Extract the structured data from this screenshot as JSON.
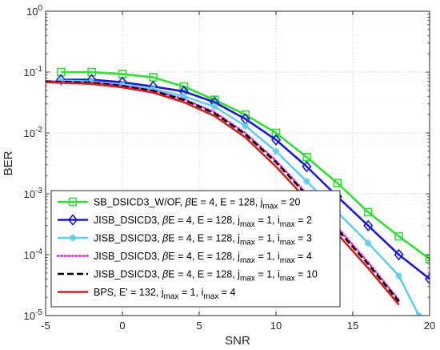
{
  "chart_data": {
    "type": "line",
    "xlabel": "SNR",
    "ylabel": "BER",
    "xlim": [
      -5,
      20
    ],
    "ylim": [
      1e-05,
      1
    ],
    "yscale": "log",
    "grid": true,
    "legend_position": "bottom-left",
    "x_ticks": [
      "-5",
      "0",
      "5",
      "10",
      "15",
      "20"
    ],
    "y_ticks": [
      {
        "base": "10",
        "exp": "0"
      },
      {
        "base": "10",
        "exp": "-1"
      },
      {
        "base": "10",
        "exp": "-2"
      },
      {
        "base": "10",
        "exp": "-3"
      },
      {
        "base": "10",
        "exp": "-4"
      },
      {
        "base": "10",
        "exp": "-5"
      }
    ],
    "series": [
      {
        "name": "SB_DSICD3_W/OF, βE = 4, E = 128, j_max = 20",
        "color": "#33dd33",
        "marker": "square",
        "dash": "solid",
        "x": [
          -4,
          -2,
          0,
          2,
          4,
          6,
          8,
          10,
          12,
          14,
          16,
          18,
          20
        ],
        "y": [
          0.1,
          0.1,
          0.093,
          0.082,
          0.058,
          0.035,
          0.02,
          0.01,
          0.004,
          0.0015,
          0.0005,
          0.0002,
          8.5e-05
        ]
      },
      {
        "name": "JISB_DSICD3, βE = 4, E = 128, j_max = 1, i_max = 2",
        "color": "#1a1acc",
        "marker": "diamond",
        "dash": "solid",
        "x": [
          -4,
          -2,
          0,
          2,
          4,
          6,
          8,
          10,
          12,
          14,
          16,
          18,
          20
        ],
        "y": [
          0.075,
          0.075,
          0.068,
          0.058,
          0.048,
          0.032,
          0.017,
          0.0077,
          0.0028,
          0.0009,
          0.0003,
          0.0001,
          4e-05
        ]
      },
      {
        "name": "JISB_DSICD3, βE = 4, E = 128, j_max = 1, i_max = 3",
        "color": "#66ccee",
        "marker": "asterisk",
        "dash": "solid",
        "x": [
          -4,
          -2,
          0,
          2,
          4,
          6,
          8,
          10,
          12,
          14,
          16,
          18,
          19.3
        ],
        "y": [
          0.072,
          0.07,
          0.062,
          0.053,
          0.04,
          0.027,
          0.013,
          0.005,
          0.0016,
          0.0005,
          0.000155,
          4.5e-05,
          1e-05
        ]
      },
      {
        "name": "JISB_DSICD3, βE = 4, E = 128, j_max = 1, i_max = 4",
        "color": "#dd22dd",
        "marker": "none",
        "dash": "dotted",
        "x": [
          -5,
          -2,
          0,
          2,
          4,
          6,
          8,
          10,
          12,
          14,
          16,
          18
        ],
        "y": [
          0.071,
          0.068,
          0.06,
          0.05,
          0.036,
          0.022,
          0.01,
          0.0035,
          0.001,
          0.00028,
          7.5e-05,
          1.8e-05
        ]
      },
      {
        "name": "JISB_DSICD3, βE = 4, E = 128, j_max = 1, i_max = 10",
        "color": "#000000",
        "marker": "none",
        "dash": "dashed",
        "x": [
          -5,
          -2,
          0,
          2,
          4,
          6,
          8,
          10,
          12,
          14,
          16,
          18
        ],
        "y": [
          0.07,
          0.067,
          0.059,
          0.049,
          0.035,
          0.021,
          0.0095,
          0.0033,
          0.00095,
          0.00026,
          7e-05,
          1.7e-05
        ]
      },
      {
        "name": "BPS, E' = 132, j_max = 1, i_max = 4",
        "color": "#cc2222",
        "marker": "none",
        "dash": "solid",
        "x": [
          -5,
          -2,
          0,
          2,
          4,
          6,
          8,
          10,
          12,
          14,
          16,
          18
        ],
        "y": [
          0.068,
          0.064,
          0.056,
          0.046,
          0.032,
          0.019,
          0.0085,
          0.0028,
          0.0008,
          0.00022,
          6e-05,
          1.5e-05
        ]
      }
    ]
  }
}
